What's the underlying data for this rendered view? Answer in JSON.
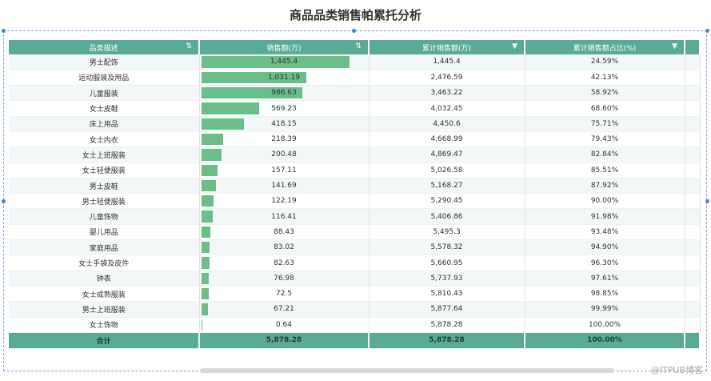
{
  "title": "商品品类销售帕累托分析",
  "columns": [
    "品类描述",
    "销售额(万)",
    "累计销售额(万)",
    "累计销售额占比(%)"
  ],
  "rows": [
    {
      "cat": "男士配饰",
      "sales": "1,445.4",
      "sales_value": 1445.4,
      "cum": "1,445.4",
      "pct": "24.59%"
    },
    {
      "cat": "运动服装及用品",
      "sales": "1,031.19",
      "sales_value": 1031.19,
      "cum": "2,476.59",
      "pct": "42.13%"
    },
    {
      "cat": "儿童服装",
      "sales": "986.63",
      "sales_value": 986.63,
      "cum": "3,463.22",
      "pct": "58.92%"
    },
    {
      "cat": "女士皮鞋",
      "sales": "569.23",
      "sales_value": 569.23,
      "cum": "4,032.45",
      "pct": "68.60%"
    },
    {
      "cat": "床上用品",
      "sales": "418.15",
      "sales_value": 418.15,
      "cum": "4,450.6",
      "pct": "75.71%"
    },
    {
      "cat": "女士内衣",
      "sales": "218.39",
      "sales_value": 218.39,
      "cum": "4,668.99",
      "pct": "79.43%"
    },
    {
      "cat": "女士上班服装",
      "sales": "200.48",
      "sales_value": 200.48,
      "cum": "4,869.47",
      "pct": "82.84%"
    },
    {
      "cat": "女士轻便服装",
      "sales": "157.11",
      "sales_value": 157.11,
      "cum": "5,026.58",
      "pct": "85.51%"
    },
    {
      "cat": "男士皮鞋",
      "sales": "141.69",
      "sales_value": 141.69,
      "cum": "5,168.27",
      "pct": "87.92%"
    },
    {
      "cat": "男士轻便服装",
      "sales": "122.19",
      "sales_value": 122.19,
      "cum": "5,290.45",
      "pct": "90.00%"
    },
    {
      "cat": "儿童饰物",
      "sales": "116.41",
      "sales_value": 116.41,
      "cum": "5,406.86",
      "pct": "91.98%"
    },
    {
      "cat": "婴儿用品",
      "sales": "88.43",
      "sales_value": 88.43,
      "cum": "5,495.3",
      "pct": "93.48%"
    },
    {
      "cat": "家庭用品",
      "sales": "83.02",
      "sales_value": 83.02,
      "cum": "5,578.32",
      "pct": "94.90%"
    },
    {
      "cat": "女士手袋及皮件",
      "sales": "82.63",
      "sales_value": 82.63,
      "cum": "5,660.95",
      "pct": "96.30%"
    },
    {
      "cat": "钟表",
      "sales": "76.98",
      "sales_value": 76.98,
      "cum": "5,737.93",
      "pct": "97.61%"
    },
    {
      "cat": "女士成熟服装",
      "sales": "72.5",
      "sales_value": 72.5,
      "cum": "5,810.43",
      "pct": "98.85%"
    },
    {
      "cat": "男士上班服装",
      "sales": "67.21",
      "sales_value": 67.21,
      "cum": "5,877.64",
      "pct": "99.99%"
    },
    {
      "cat": "女士饰物",
      "sales": "0.64",
      "sales_value": 0.64,
      "cum": "5,878.28",
      "pct": "100.00%"
    }
  ],
  "total": {
    "label": "合计",
    "sales": "5,878.28",
    "cum": "5,878.28",
    "pct": "100.00%"
  },
  "watermark": "@ITPUB博客",
  "colors": {
    "header": "#5aab96",
    "bar": "#6bbd8a",
    "row_alt": "#f2f8f7"
  },
  "icons": {
    "sort": "sort-icon",
    "dropdown": "dropdown-icon"
  }
}
